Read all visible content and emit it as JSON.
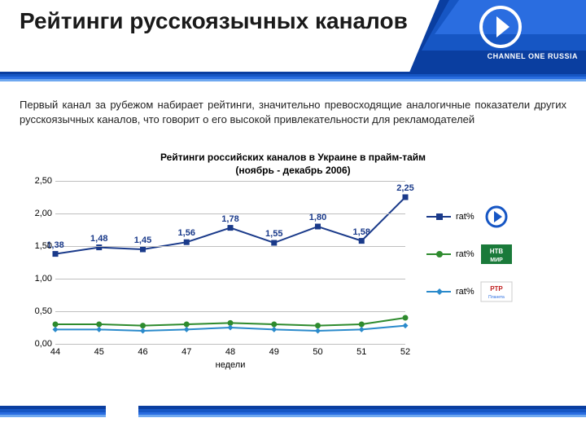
{
  "header": {
    "title": "Рейтинги русскоязычных каналов",
    "brand_text": "CHANNEL ONE RUSSIA",
    "band_colors": [
      "#0a3ea0",
      "#1656c4",
      "#2a6de0"
    ],
    "logo_color": "#ffffff"
  },
  "body": {
    "text": "Первый канал за рубежом набирает рейтинги, значительно превосходящие аналогичные показатели других русскоязычных каналов, что говорит о его высокой привлекательности для рекламодателей"
  },
  "chart": {
    "type": "line",
    "title": "Рейтинги российских каналов в Украине в прайм-тайм",
    "subtitle": "(ноябрь - декабрь 2006)",
    "x_title": "недели",
    "x_categories": [
      "44",
      "45",
      "46",
      "47",
      "48",
      "49",
      "50",
      "51",
      "52"
    ],
    "ylim": [
      0.0,
      2.5
    ],
    "ytick_step": 0.5,
    "y_labels": [
      "0,00",
      "0,50",
      "1,00",
      "1,50",
      "2,00",
      "2,50"
    ],
    "grid_color": "#bfbfbf",
    "background_color": "#ffffff",
    "axis_color": "#000000",
    "label_fontsize": 11,
    "title_fontsize": 12,
    "line_width": 2,
    "marker_size": 7,
    "series": [
      {
        "name": "rat%",
        "color": "#1a3a8a",
        "marker": "square",
        "values": [
          1.38,
          1.48,
          1.45,
          1.56,
          1.78,
          1.55,
          1.8,
          1.58,
          2.25
        ],
        "show_labels": true,
        "label_color": "#1a3a8a",
        "labels": [
          "1,38",
          "1,48",
          "1,45",
          "1,56",
          "1,78",
          "1,55",
          "1,80",
          "1,58",
          "2,25"
        ]
      },
      {
        "name": "rat%",
        "color": "#2e8b2e",
        "marker": "circle",
        "values": [
          0.3,
          0.3,
          0.28,
          0.3,
          0.32,
          0.3,
          0.28,
          0.3,
          0.4
        ],
        "show_labels": false
      },
      {
        "name": "rat%",
        "color": "#2a8acb",
        "marker": "diamond",
        "values": [
          0.22,
          0.22,
          0.2,
          0.22,
          0.25,
          0.22,
          0.2,
          0.22,
          0.28
        ],
        "show_labels": false
      }
    ],
    "legend": {
      "items": [
        {
          "label": "rat%",
          "color": "#1a3a8a",
          "marker": "square",
          "logo": "channel1"
        },
        {
          "label": "rat%",
          "color": "#2e8b2e",
          "marker": "circle",
          "logo": "ntvmir"
        },
        {
          "label": "rat%",
          "color": "#2a8acb",
          "marker": "diamond",
          "logo": "rtrplaneta"
        }
      ]
    }
  },
  "footer": {
    "band_colors": [
      "#0a3ea0",
      "#1656c4",
      "#2a6de0",
      "#6fa8f0"
    ]
  }
}
